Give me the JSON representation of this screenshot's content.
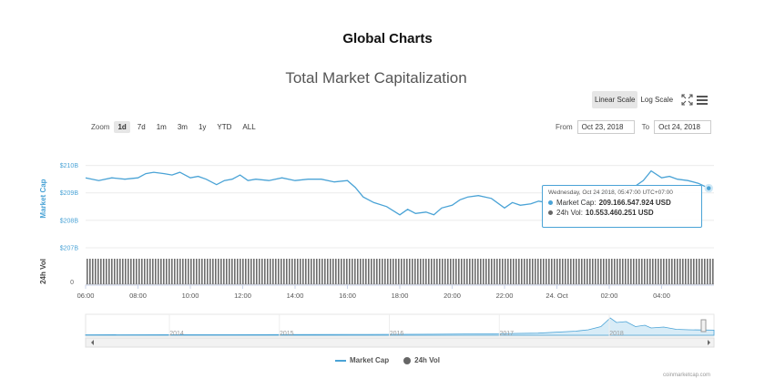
{
  "page": {
    "title": "Global Charts"
  },
  "toolbar": {
    "scale_options": [
      "Linear Scale",
      "Log Scale"
    ],
    "active_scale": "Linear Scale",
    "zoom_label": "Zoom",
    "zoom_options": [
      "1d",
      "7d",
      "1m",
      "3m",
      "1y",
      "YTD",
      "ALL"
    ],
    "active_zoom": "1d",
    "from_label": "From",
    "from_value": "Oct 23, 2018",
    "to_label": "To",
    "to_value": "Oct 24, 2018"
  },
  "tooltip": {
    "date": "Wednesday, Oct 24 2018, 05:47:00 UTC+07:00",
    "market_cap_label": "Market Cap:",
    "market_cap_value": "209.166.547.924 USD",
    "vol_label": "24h Vol:",
    "vol_value": "10.553.460.251 USD"
  },
  "legend": {
    "market_cap": "Market Cap",
    "vol": "24h Vol"
  },
  "credits": "coinmarketcap.com",
  "colors": {
    "market_cap": "#4aa3d6",
    "volume": "#666666",
    "navigator_fill": "#d8ecf7"
  },
  "chart_data": {
    "type": "line",
    "title": "Total Market Capitalization",
    "ylabel": "Market Cap",
    "vol_label": "24h Vol",
    "y_ticks": [
      "$210B",
      "$209B",
      "$208B",
      "$207B"
    ],
    "y_tick_values": [
      210,
      209,
      208,
      207
    ],
    "vol_tick": "0",
    "ylim": [
      207,
      210.65
    ],
    "xlim": [
      0,
      24
    ],
    "x_ticks": [
      "06:00",
      "08:00",
      "10:00",
      "12:00",
      "14:00",
      "16:00",
      "18:00",
      "20:00",
      "22:00",
      "24. Oct",
      "02:00",
      "04:00"
    ],
    "x_tick_values": [
      0,
      2,
      4,
      6,
      8,
      10,
      12,
      14,
      16,
      18,
      20,
      22
    ],
    "series": [
      {
        "name": "Market Cap",
        "x": [
          0,
          0.5,
          1,
          1.5,
          2,
          2.3,
          2.6,
          3,
          3.3,
          3.6,
          4,
          4.3,
          4.6,
          5,
          5.3,
          5.6,
          5.9,
          6.2,
          6.5,
          7,
          7.5,
          8,
          8.5,
          9,
          9.5,
          10,
          10.3,
          10.6,
          11,
          11.5,
          12,
          12.3,
          12.6,
          13,
          13.3,
          13.6,
          14,
          14.3,
          14.6,
          15,
          15.5,
          16,
          16.3,
          16.6,
          17,
          17.3,
          17.6,
          18,
          18.5,
          19,
          19.5,
          20,
          20.5,
          21,
          21.3,
          21.6,
          22,
          22.3,
          22.6,
          23,
          23.4,
          23.8
        ],
        "values": [
          209.55,
          209.45,
          209.55,
          209.5,
          209.55,
          209.7,
          209.75,
          209.7,
          209.65,
          209.75,
          209.55,
          209.6,
          209.5,
          209.3,
          209.45,
          209.5,
          209.65,
          209.45,
          209.5,
          209.45,
          209.55,
          209.45,
          209.5,
          209.5,
          209.4,
          209.45,
          209.2,
          208.85,
          208.65,
          208.5,
          208.2,
          208.4,
          208.25,
          208.3,
          208.2,
          208.45,
          208.55,
          208.75,
          208.85,
          208.9,
          208.8,
          208.45,
          208.65,
          208.55,
          208.6,
          208.7,
          208.65,
          208.5,
          208.6,
          208.75,
          208.95,
          209.05,
          209.15,
          209.25,
          209.45,
          209.8,
          209.55,
          209.6,
          209.5,
          209.45,
          209.35,
          209.17
        ]
      },
      {
        "name": "24h Vol",
        "values": "uniform bars, approx. 10.5B USD"
      }
    ],
    "navigator": {
      "x_labels": [
        "2014",
        "2015",
        "2016",
        "2017",
        "2018"
      ]
    }
  }
}
